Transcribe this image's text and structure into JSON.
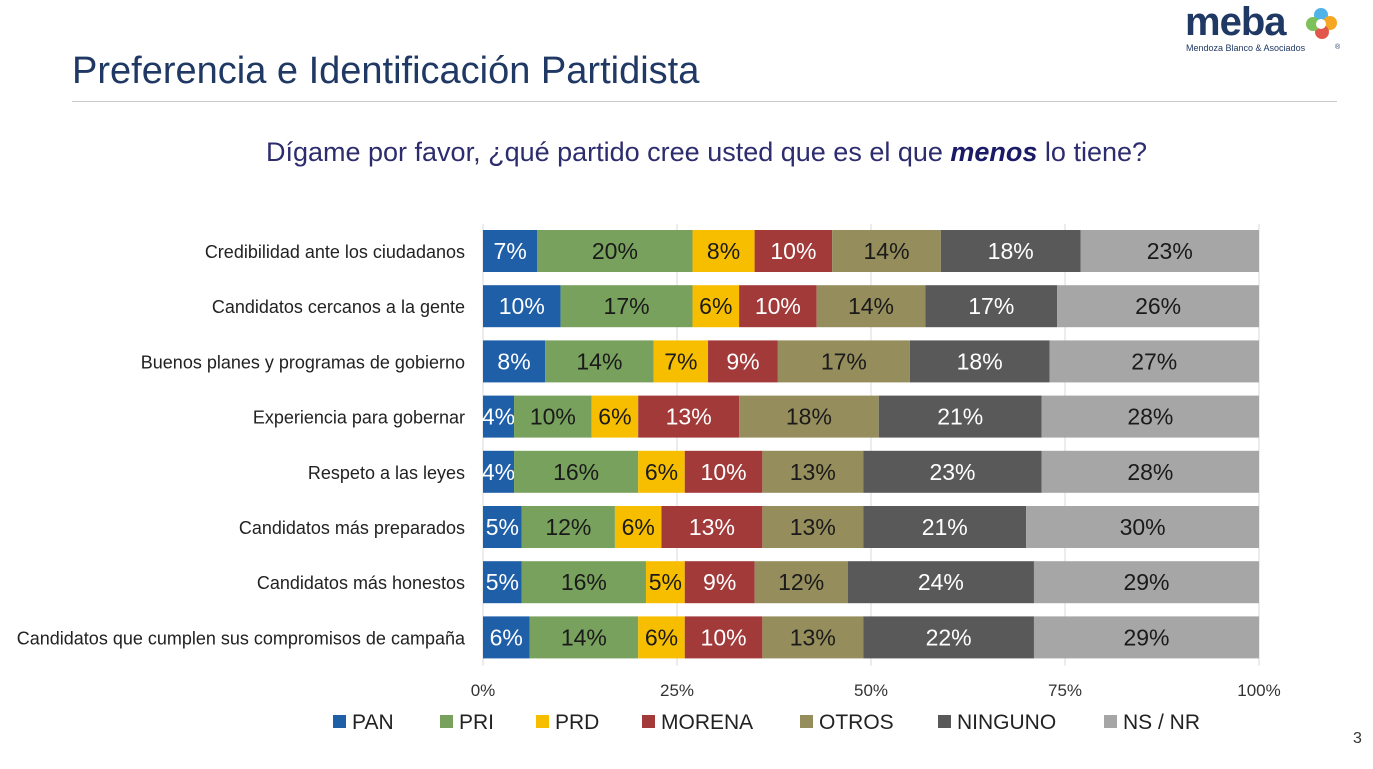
{
  "header": {
    "title": "Preferencia e Identificación Partidista",
    "logo_text": "meba",
    "logo_subtitle": "Mendoza Blanco & Asociados",
    "logo_registered": "®"
  },
  "question": {
    "before": "Dígame por favor, ¿qué partido cree usted que es el que ",
    "emphasis": "menos",
    "after": " lo tiene?"
  },
  "page_number": "3",
  "colors": {
    "PAN": "#1F5FA8",
    "PRI": "#78A15D",
    "PRD": "#F7BE00",
    "MORENA": "#A23A3A",
    "OTROS": "#958D5C",
    "NINGUNO": "#595959",
    "NS / NR": "#A6A6A6"
  },
  "chart_data": {
    "type": "bar",
    "orientation": "horizontal",
    "stacked": true,
    "categories": [
      "Credibilidad ante los ciudadanos",
      "Candidatos cercanos a la gente",
      "Buenos planes y programas de gobierno",
      "Experiencia para gobernar",
      "Respeto a las leyes",
      "Candidatos más preparados",
      "Candidatos más honestos",
      "Candidatos que cumplen sus compromisos de campaña"
    ],
    "series": [
      {
        "name": "PAN",
        "values": [
          7,
          10,
          8,
          4,
          4,
          5,
          5,
          6
        ]
      },
      {
        "name": "PRI",
        "values": [
          20,
          17,
          14,
          10,
          16,
          12,
          16,
          14
        ]
      },
      {
        "name": "PRD",
        "values": [
          8,
          6,
          7,
          6,
          6,
          6,
          5,
          6
        ]
      },
      {
        "name": "MORENA",
        "values": [
          10,
          10,
          9,
          13,
          10,
          13,
          9,
          10
        ]
      },
      {
        "name": "OTROS",
        "values": [
          14,
          14,
          17,
          18,
          13,
          13,
          12,
          13
        ]
      },
      {
        "name": "NINGUNO",
        "values": [
          18,
          17,
          18,
          21,
          23,
          21,
          24,
          22
        ]
      },
      {
        "name": "NS / NR",
        "values": [
          23,
          26,
          27,
          28,
          28,
          30,
          29,
          29
        ]
      }
    ],
    "xlim": [
      0,
      100
    ],
    "xticks": [
      "0%",
      "25%",
      "50%",
      "75%",
      "100%"
    ],
    "value_format": "percent",
    "grid": true,
    "legend_position": "bottom"
  }
}
